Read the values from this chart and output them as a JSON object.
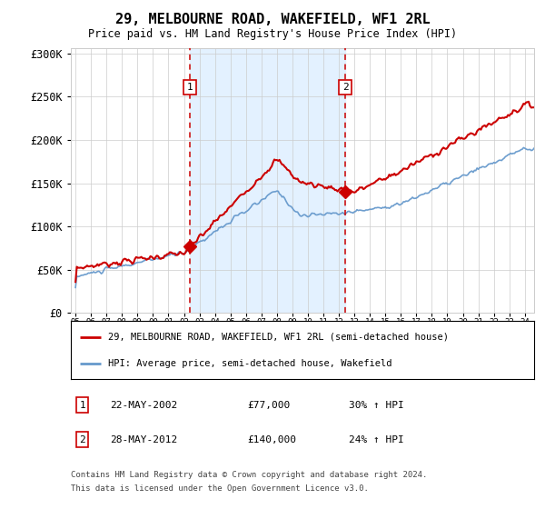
{
  "title": "29, MELBOURNE ROAD, WAKEFIELD, WF1 2RL",
  "subtitle": "Price paid vs. HM Land Registry's House Price Index (HPI)",
  "hpi_label": "HPI: Average price, semi-detached house, Wakefield",
  "property_label": "29, MELBOURNE ROAD, WAKEFIELD, WF1 2RL (semi-detached house)",
  "ann1_date": "22-MAY-2002",
  "ann1_price": "£77,000",
  "ann1_pct": "30% ↑ HPI",
  "ann2_date": "28-MAY-2012",
  "ann2_price": "£140,000",
  "ann2_pct": "24% ↑ HPI",
  "footnote1": "Contains HM Land Registry data © Crown copyright and database right 2024.",
  "footnote2": "This data is licensed under the Open Government Licence v3.0.",
  "red_color": "#cc0000",
  "blue_color": "#6699cc",
  "bg_shade": "#ddeeff",
  "grid_color": "#cccccc",
  "ymax": 300000,
  "yticks": [
    0,
    50000,
    100000,
    150000,
    200000,
    250000,
    300000
  ],
  "purchase1_year": 2002.38,
  "purchase1_price": 77000,
  "purchase2_year": 2012.41,
  "purchase2_price": 140000
}
